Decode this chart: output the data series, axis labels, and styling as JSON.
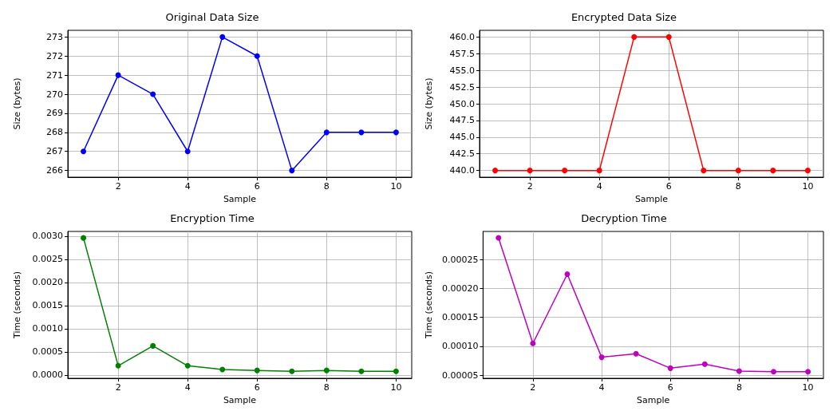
{
  "chart_data": [
    {
      "type": "line",
      "title": "Original Data Size",
      "xlabel": "Sample",
      "ylabel": "Size (bytes)",
      "x": [
        1,
        2,
        3,
        4,
        5,
        6,
        7,
        8,
        9,
        10
      ],
      "series": [
        {
          "color": "#0000ff",
          "values": [
            267,
            271,
            270,
            267,
            273,
            272,
            266,
            268,
            268,
            268
          ]
        }
      ],
      "xlim": [
        0.55,
        10.45
      ],
      "ylim": [
        265.65,
        273.35
      ],
      "xticks": [
        2,
        4,
        6,
        8,
        10
      ],
      "yticks": [
        266,
        267,
        268,
        269,
        270,
        271,
        272,
        273
      ],
      "grid": true,
      "marker": "circle",
      "line_style": "solid"
    },
    {
      "type": "line",
      "title": "Encrypted Data Size",
      "xlabel": "Sample",
      "ylabel": "Size (bytes)",
      "x": [
        1,
        2,
        3,
        4,
        5,
        6,
        7,
        8,
        9,
        10
      ],
      "series": [
        {
          "color": "#ff0000",
          "values": [
            440,
            440,
            440,
            440,
            460,
            460,
            440,
            440,
            440,
            440
          ]
        }
      ],
      "xlim": [
        0.55,
        10.45
      ],
      "ylim": [
        439,
        461
      ],
      "xticks": [
        2,
        4,
        6,
        8,
        10
      ],
      "yticks": [
        {
          "value": 440,
          "label": "440.0"
        },
        {
          "value": 442.5,
          "label": "442.5"
        },
        {
          "value": 445,
          "label": "445.0"
        },
        {
          "value": 447.5,
          "label": "447.5"
        },
        {
          "value": 450,
          "label": "450.0"
        },
        {
          "value": 452.5,
          "label": "452.5"
        },
        {
          "value": 455,
          "label": "455.0"
        },
        {
          "value": 457.5,
          "label": "457.5"
        },
        {
          "value": 460,
          "label": "460.0"
        }
      ],
      "grid": true,
      "marker": "circle",
      "line_style": "solid"
    },
    {
      "type": "line",
      "title": "Encryption Time",
      "xlabel": "Sample",
      "ylabel": "Time (seconds)",
      "x": [
        1,
        2,
        3,
        4,
        5,
        6,
        7,
        8,
        9,
        10
      ],
      "series": [
        {
          "color": "#008000",
          "values": [
            0.00296,
            0.0002,
            0.00063,
            0.0002,
            0.00012,
            0.0001,
            8e-05,
            0.0001,
            8e-05,
            8e-05
          ]
        }
      ],
      "xlim": [
        0.55,
        10.45
      ],
      "ylim": [
        -7e-05,
        0.0031
      ],
      "xticks": [
        2,
        4,
        6,
        8,
        10
      ],
      "yticks": [
        {
          "value": 0,
          "label": "0.0000"
        },
        {
          "value": 0.0005,
          "label": "0.0005"
        },
        {
          "value": 0.001,
          "label": "0.0010"
        },
        {
          "value": 0.0015,
          "label": "0.0015"
        },
        {
          "value": 0.002,
          "label": "0.0020"
        },
        {
          "value": 0.0025,
          "label": "0.0025"
        },
        {
          "value": 0.003,
          "label": "0.0030"
        }
      ],
      "grid": true,
      "marker": "circle",
      "line_style": "solid"
    },
    {
      "type": "line",
      "title": "Decryption Time",
      "xlabel": "Sample",
      "ylabel": "Time (seconds)",
      "x": [
        1,
        2,
        3,
        4,
        5,
        6,
        7,
        8,
        9,
        10
      ],
      "series": [
        {
          "color": "#bf00bf",
          "values": [
            0.000288,
            0.000105,
            0.000225,
            8.1e-05,
            8.7e-05,
            6.2e-05,
            6.9e-05,
            5.7e-05,
            5.6e-05,
            5.6e-05
          ]
        }
      ],
      "xlim": [
        0.55,
        10.45
      ],
      "ylim": [
        4.45e-05,
        0.000299
      ],
      "xticks": [
        2,
        4,
        6,
        8,
        10
      ],
      "yticks": [
        {
          "value": 5e-05,
          "label": "0.00005"
        },
        {
          "value": 0.0001,
          "label": "0.00010"
        },
        {
          "value": 0.00015,
          "label": "0.00015"
        },
        {
          "value": 0.0002,
          "label": "0.00020"
        },
        {
          "value": 0.00025,
          "label": "0.00025"
        }
      ],
      "grid": true,
      "marker": "circle",
      "line_style": "solid"
    }
  ]
}
